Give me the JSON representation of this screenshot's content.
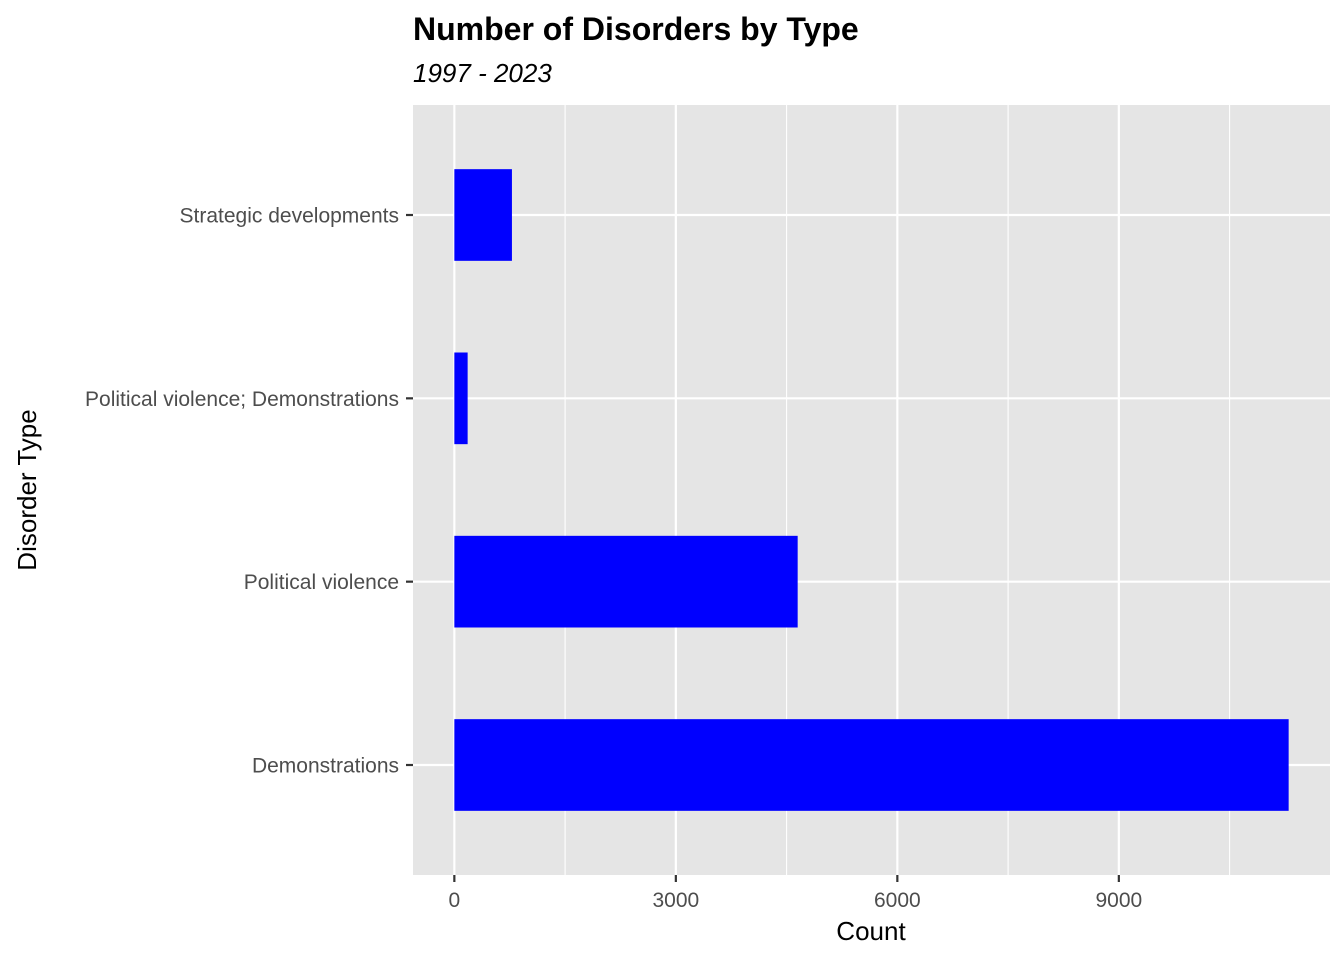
{
  "chart_data": {
    "type": "bar",
    "orientation": "horizontal",
    "title": "Number of Disorders by Type",
    "subtitle": "1997 - 2023",
    "xlabel": "Count",
    "ylabel": "Disorder Type",
    "categories": [
      "Demonstrations",
      "Political violence",
      "Political violence; Demonstrations",
      "Strategic developments"
    ],
    "values": [
      11300,
      4650,
      180,
      780
    ],
    "xlim": [
      -560,
      11860
    ],
    "xticks": [
      0,
      3000,
      6000,
      9000
    ],
    "x_tick_labels": [
      "0",
      "3000",
      "6000",
      "9000"
    ],
    "grid": true,
    "bar_color": "#0000ff",
    "panel_background": "#e5e5e5",
    "grid_color": "#ffffff"
  }
}
